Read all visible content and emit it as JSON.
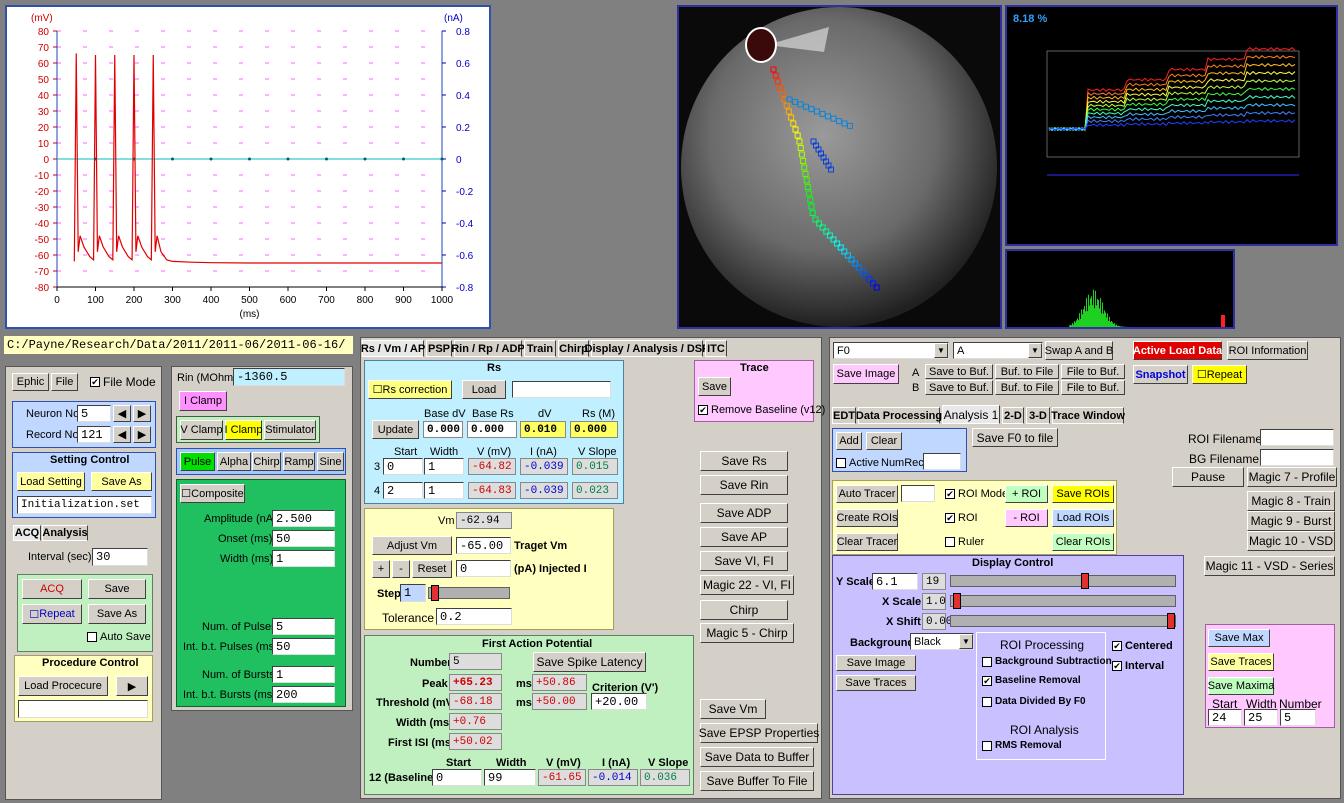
{
  "plot": {
    "y_left_unit": "(mV)",
    "y_right_unit": "(nA)",
    "x_unit": "(ms)",
    "y_left_ticks": [
      "80",
      "70",
      "60",
      "50",
      "40",
      "30",
      "20",
      "10",
      "0",
      "-10",
      "-20",
      "-30",
      "-40",
      "-50",
      "-60",
      "-70",
      "-80"
    ],
    "y_right_ticks": [
      "0.8",
      "0.6",
      "0.4",
      "0.2",
      "0",
      "-0.2",
      "-0.4",
      "-0.6",
      "-0.8"
    ],
    "x_ticks": [
      "0",
      "100",
      "200",
      "300",
      "400",
      "500",
      "600",
      "700",
      "800",
      "900",
      "1000"
    ]
  },
  "chart_data": {
    "type": "line",
    "xlabel": "(ms)",
    "ylabel": "(mV)",
    "y2label": "(nA)",
    "xlim": [
      0,
      1000
    ],
    "ylim": [
      -80,
      80
    ],
    "y2lim": [
      -0.8,
      0.8
    ],
    "series": [
      {
        "color": "#e00000",
        "x": [
          45,
          50,
          55,
          60,
          70,
          85,
          95,
          100,
          105,
          110,
          120,
          135,
          145,
          150,
          155,
          160,
          170,
          185,
          195,
          200,
          205,
          210,
          220,
          235,
          245,
          250,
          255,
          260,
          270,
          285,
          300,
          350,
          400,
          500,
          600,
          800,
          1000
        ],
        "y": [
          -64,
          66,
          -58,
          -48,
          -55,
          -61,
          -63,
          65,
          -58,
          -48,
          -55,
          -61,
          -63,
          65,
          -58,
          -48,
          -55,
          -61,
          -63,
          65,
          -58,
          -48,
          -55,
          -61,
          -63,
          65,
          -58,
          -48,
          -58,
          -63,
          -64,
          -64.5,
          -64.8,
          -65,
          -65,
          -65,
          -65
        ]
      },
      {
        "color": "#00c0c0",
        "x": [
          0,
          1000
        ],
        "y": [
          0,
          0
        ]
      }
    ]
  },
  "path": "C:/Payne/Research/Data/2011/2011-06/2011-06-16/",
  "left": {
    "btn_ephic": "Ephic",
    "btn_file": "File",
    "file_mode": "File Mode",
    "neuron_label": "Neuron No",
    "neuron_val": "5",
    "record_label": "Record No",
    "record_val": "121",
    "setting_title": "Setting Control",
    "load_setting": "Load Setting",
    "save_as": "Save As",
    "set_file": "Initialization.set",
    "tab_acq": "ACQ",
    "tab_analysis": "Analysis",
    "interval_label": "Interval (sec):",
    "interval_val": "30",
    "acq": "ACQ",
    "save": "Save",
    "repeat": "Repeat",
    "save_as2": "Save As",
    "auto_save": "Auto Save",
    "proc_title": "Procedure Control",
    "load_proc": "Load Procecure"
  },
  "clamp": {
    "rin_label": "Rin (MOhm)",
    "rin_val": "-1360.5",
    "iclamp_btn": "I Clamp",
    "vclamp": "V Clamp",
    "iclamp": "I Clamp",
    "stim": "Stimulator",
    "pulse": "Pulse",
    "alpha": "Alpha",
    "chirp": "Chirp",
    "ramp": "Ramp",
    "sine": "Sine",
    "composite": "Composite",
    "amp_label": "Amplitude (nA)",
    "amp_val": "2.500",
    "onset_label": "Onset (ms)",
    "onset_val": "50",
    "width_label": "Width (ms)",
    "width_val": "1",
    "npulse_label": "Num. of Pulses",
    "npulse_val": "5",
    "intp_label": "Int. b.t. Pulses (ms)",
    "intp_val": "50",
    "nburst_label": "Num. of Bursts",
    "nburst_val": "1",
    "intb_label": "Int. b.t. Bursts (ms)",
    "intb_val": "200"
  },
  "midtabs": [
    "Rs / Vm / AP",
    "PSP",
    "Rin / Rp / ADP",
    "Train",
    "Chirp",
    "Display / Analysis / DSP",
    "ITC"
  ],
  "rs": {
    "title": "Rs",
    "rs_corr": "Rs correction",
    "load": "Load",
    "h_basedv": "Base dV",
    "h_basers": "Base Rs",
    "h_dv": "dV",
    "h_rsm": "Rs (M)",
    "update": "Update",
    "basedv": "0.000",
    "basers": "0.000",
    "dv": "0.010",
    "rsm": "0.000",
    "h_start": "Start",
    "h_width": "Width",
    "h_v": "V (mV)",
    "h_i": "I (nA)",
    "h_vslope": "V Slope",
    "r3": "3",
    "r3_start": "0",
    "r3_width": "1",
    "r3_v": "-64.82",
    "r3_i": "-0.039",
    "r3_slope": "0.015",
    "r4": "4",
    "r4_start": "2",
    "r4_width": "1",
    "r4_v": "-64.83",
    "r4_i": "-0.039",
    "r4_slope": "0.023"
  },
  "trace": {
    "title": "Trace",
    "save": "Save",
    "remove_baseline": "Remove Baseline (v12)"
  },
  "vm": {
    "vm_label": "Vm",
    "vm_val": "-62.94",
    "adjust": "Adjust Vm",
    "target_val": "-65.00",
    "target_label": "Traget Vm",
    "plus": "+",
    "minus": "-",
    "reset": "Reset",
    "inj_val": "0",
    "inj_label": "(pA) Injected I",
    "step_label": "Step",
    "step_val": "1",
    "tol_label": "Tolerance",
    "tol_val": "0.2"
  },
  "ap": {
    "title": "First Action Potential",
    "number_label": "Number",
    "number_val": "5",
    "spike_btn": "Save Spike Latency",
    "peak_label": "Peak",
    "peak_val": "+65.23",
    "ms1": "ms",
    "peak_ms": "+50.86",
    "crit_label": "Criterion (V')",
    "thr_label": "Threshold (mV)",
    "thr_val": "-68.18",
    "ms2": "ms",
    "thr_ms": "+50.00",
    "crit_val": "+20.00",
    "width_label": "Width (ms)",
    "width_val": "+0.76",
    "isi_label": "First ISI (ms)",
    "isi_val": "+50.02",
    "h_start": "Start",
    "h_width": "Width",
    "h_v": "V (mV)",
    "h_i": "I (nA)",
    "h_slope": "V Slope",
    "base_label": "12 (Baseline)",
    "base_start": "0",
    "base_width": "99",
    "base_v": "-61.65",
    "base_i": "-0.014",
    "base_slope": "0.036"
  },
  "savebtns": {
    "rs": "Save Rs",
    "rin": "Save Rin",
    "adp": "Save ADP",
    "ap": "Save AP",
    "vifi": "Save VI, FI",
    "magic22": "Magic 22 - VI, FI",
    "chirp": "Chirp",
    "magic5": "Magic 5 - Chirp",
    "vm": "Save Vm",
    "epsp": "Save EPSP Properties",
    "buffer": "Save Data to Buffer",
    "buf_file": "Save Buffer To File"
  },
  "image_panel": {
    "percent": "8.18 %"
  },
  "right": {
    "sel1": "F0",
    "sel2": "A",
    "swap": "Swap A and B",
    "active_load": "Active Load Data",
    "roi_info": "ROI Information",
    "save_image": "Save Image",
    "a": "A",
    "b": "B",
    "save_buf": "Save to Buf.",
    "buf_file": "Buf. to File",
    "file_buf": "File to Buf.",
    "snapshot": "Snapshot",
    "repeat": "Repeat",
    "tabs": [
      "EDT",
      "Data Processing",
      "Analysis 1",
      "2-D",
      "3-D",
      "Trace Window"
    ],
    "add": "Add",
    "clear": "Clear",
    "active": "Active",
    "numrec": "NumRec",
    "save_f0": "Save F0 to file",
    "roi_filename": "ROI Filename",
    "bg_filename": "BG Filename",
    "pause": "Pause",
    "magic7": "Magic 7 - Profile",
    "magic8": "Magic 8 - Train",
    "magic9": "Magic 9 - Burst",
    "magic10": "Magic 10 - VSD",
    "magic11": "Magic 11 - VSD - Series",
    "auto_tracer": "Auto Tracer",
    "roi_mode": "ROI Mode",
    "plus_roi": "+ ROI",
    "save_rois": "Save ROIs",
    "create_rois": "Create ROIs",
    "roi": "ROI",
    "minus_roi": "- ROI",
    "load_rois": "Load ROIs",
    "clear_tracer": "Clear Tracer",
    "ruler": "Ruler",
    "clear_rois": "Clear ROIs",
    "display_title": "Display Control",
    "yscale_label": "Y Scale",
    "yscale_val": "6.1",
    "yscale_num": "19",
    "xscale_label": "X Scale",
    "xscale_val": "1.0",
    "xshift_label": "X Shift",
    "xshift_val": "0.00",
    "bg_label": "Background",
    "bg_val": "Black",
    "save_image2": "Save Image",
    "save_traces": "Save Traces",
    "roi_proc": "ROI Processing",
    "bg_sub": "Background Subtraction",
    "baseline_rem": "Baseline Removal",
    "div_f0": "Data Divided By F0",
    "roi_analysis": "ROI Analysis",
    "rms": "RMS Removal",
    "centered": "Centered",
    "interval": "Interval",
    "save_max": "Save Max",
    "save_traces2": "Save Traces",
    "save_maxima": "Save Maxima",
    "h_start": "Start",
    "h_width": "Width",
    "h_number": "Number",
    "start_val": "24",
    "width_val": "25",
    "number_val": "5"
  }
}
